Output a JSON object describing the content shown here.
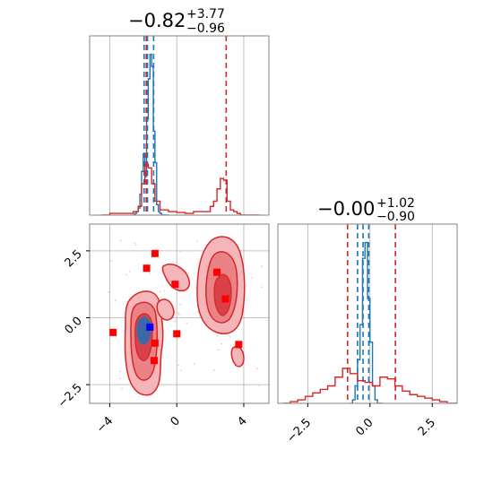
{
  "chart_data": {
    "type": "corner",
    "panels": [
      {
        "position": "top-left",
        "kind": "histogram",
        "parameter": "x",
        "title": {
          "median": "−0.82",
          "upper": "+3.77",
          "lower": "−0.96"
        },
        "xlim": [
          -5.2,
          5.5
        ],
        "series": [
          {
            "color": "#1f77b4",
            "style": "step",
            "bins_x": [
              -2.6,
              -2.5,
              -2.4,
              -2.3,
              -2.2,
              -2.1,
              -2.0,
              -1.9,
              -1.8,
              -1.7,
              -1.6,
              -1.5,
              -1.4,
              -1.3,
              -1.2,
              -1.1,
              -1.0,
              -0.9,
              -0.8
            ],
            "values": [
              0.0,
              0.01,
              0.02,
              0.04,
              0.12,
              0.25,
              0.35,
              0.22,
              0.55,
              0.78,
              0.92,
              0.85,
              0.48,
              0.3,
              0.06,
              0.02,
              0.01,
              0.0,
              0.0
            ],
            "quantile_lines": [
              -1.95,
              -1.75,
              -1.38
            ]
          },
          {
            "color": "#d62728",
            "style": "step",
            "bins_x": [
              -4.5,
              -4.0,
              -3.5,
              -3.0,
              -2.6,
              -2.3,
              -2.1,
              -1.9,
              -1.7,
              -1.5,
              -1.3,
              -1.0,
              -0.5,
              0.0,
              0.5,
              1.0,
              1.5,
              2.0,
              2.2,
              2.4,
              2.6,
              2.8,
              3.0,
              3.2,
              3.4,
              3.6,
              3.8,
              4.2,
              4.6
            ],
            "values": [
              0.0,
              0.01,
              0.01,
              0.01,
              0.02,
              0.05,
              0.18,
              0.29,
              0.27,
              0.18,
              0.08,
              0.03,
              0.02,
              0.015,
              0.01,
              0.02,
              0.02,
              0.05,
              0.08,
              0.15,
              0.21,
              0.2,
              0.08,
              0.03,
              0.02,
              0.01,
              0.0,
              0.0,
              0.0
            ],
            "quantile_lines": [
              -1.82,
              2.95
            ]
          }
        ],
        "x_grid": [
          -4,
          0,
          4
        ]
      },
      {
        "position": "bottom-left",
        "kind": "2d_contour",
        "xlim": [
          -5.2,
          5.5
        ],
        "ylim": [
          -3.2,
          3.5
        ],
        "x_ticks": [
          "−4",
          "0",
          "4"
        ],
        "x_tick_values": [
          -4,
          0,
          4
        ],
        "y_ticks": [
          "−2.5",
          "0.0",
          "2.5"
        ],
        "y_tick_values": [
          -2.5,
          0.0,
          2.5
        ],
        "red_markers": [
          {
            "x": -3.8,
            "y": -0.55
          },
          {
            "x": -1.3,
            "y": 2.4
          },
          {
            "x": -1.8,
            "y": 1.85
          },
          {
            "x": -0.1,
            "y": 1.25
          },
          {
            "x": 0.0,
            "y": -0.6
          },
          {
            "x": -1.3,
            "y": -0.95
          },
          {
            "x": -1.35,
            "y": -1.6
          },
          {
            "x": 2.4,
            "y": 1.7
          },
          {
            "x": 2.9,
            "y": 0.7
          },
          {
            "x": 3.7,
            "y": -1.0
          }
        ],
        "blue_marker": {
          "x": -1.6,
          "y": -0.35
        }
      },
      {
        "position": "bottom-right",
        "kind": "histogram",
        "parameter": "y",
        "title": {
          "median": "−0.00",
          "upper": "+1.02",
          "lower": "−0.90"
        },
        "xlim": [
          -3.7,
          3.5
        ],
        "x_ticks": [
          "−2.5",
          "0.0",
          "2.5"
        ],
        "x_tick_values": [
          -2.5,
          0.0,
          2.5
        ],
        "series": [
          {
            "color": "#1f77b4",
            "style": "step",
            "bins_x": [
              -0.8,
              -0.7,
              -0.6,
              -0.5,
              -0.4,
              -0.3,
              -0.2,
              -0.1,
              0.0,
              0.1,
              0.2,
              0.3
            ],
            "values": [
              0.0,
              0.02,
              0.1,
              0.25,
              0.45,
              0.83,
              0.92,
              0.6,
              0.35,
              0.1,
              0.02,
              0.0
            ],
            "quantile_lines": [
              -0.5,
              -0.28,
              -0.05
            ]
          },
          {
            "color": "#d62728",
            "style": "step",
            "bins_x": [
              -3.5,
              -3.2,
              -2.9,
              -2.6,
              -2.3,
              -2.0,
              -1.7,
              -1.4,
              -1.1,
              -0.8,
              -0.5,
              -0.2,
              0.1,
              0.4,
              0.7,
              1.0,
              1.3,
              1.6,
              1.9,
              2.2,
              2.5,
              2.8,
              3.1,
              3.4
            ],
            "values": [
              0.0,
              0.01,
              0.02,
              0.04,
              0.06,
              0.08,
              0.1,
              0.15,
              0.2,
              0.17,
              0.13,
              0.12,
              0.1,
              0.15,
              0.14,
              0.1,
              0.07,
              0.05,
              0.04,
              0.03,
              0.02,
              0.01,
              0.0,
              0.0
            ],
            "quantile_lines": [
              -0.9,
              1.02
            ]
          }
        ],
        "x_grid": [
          -2.5,
          0.0,
          2.5
        ]
      }
    ]
  },
  "colors": {
    "blue": "#1f77b4",
    "red": "#d62728",
    "grid": "#b0b0b0"
  }
}
